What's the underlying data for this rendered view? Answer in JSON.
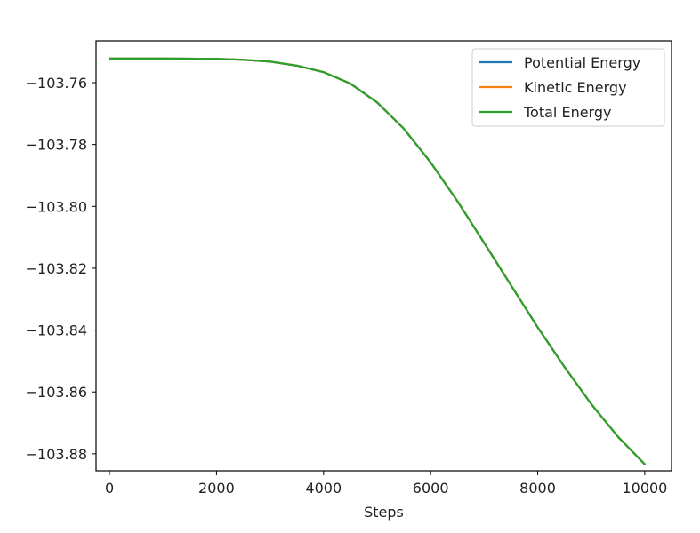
{
  "chart_data": {
    "type": "line",
    "title": "",
    "xlabel": "Steps",
    "ylabel": "",
    "xlim": [
      -250,
      10500
    ],
    "ylim": [
      -103.8855,
      -103.7465
    ],
    "xticks": [
      0,
      2000,
      4000,
      6000,
      8000,
      10000
    ],
    "xtick_labels": [
      "0",
      "2000",
      "4000",
      "6000",
      "8000",
      "10000"
    ],
    "yticks": [
      -103.76,
      -103.78,
      -103.8,
      -103.82,
      -103.84,
      -103.86,
      -103.88
    ],
    "ytick_labels": [
      "−103.76",
      "−103.78",
      "−103.80",
      "−103.82",
      "−103.84",
      "−103.86",
      "−103.88"
    ],
    "grid": false,
    "legend_position": "top-right",
    "x": [
      0,
      1000,
      2000,
      2500,
      3000,
      3500,
      4000,
      4500,
      5000,
      5500,
      6000,
      6500,
      7000,
      7500,
      8000,
      8500,
      9000,
      9500,
      10000
    ],
    "series": [
      {
        "name": "Potential Energy",
        "color": "#1f77b4",
        "values": [
          -103.7522,
          -103.7522,
          -103.7523,
          -103.7526,
          -103.7532,
          -103.7545,
          -103.7566,
          -103.7603,
          -103.7664,
          -103.7749,
          -103.7858,
          -103.7983,
          -103.8118,
          -103.8255,
          -103.8391,
          -103.8519,
          -103.8639,
          -103.8745,
          -103.8834
        ]
      },
      {
        "name": "Kinetic Energy",
        "color": "#ff7f0e",
        "values": [
          -103.7522,
          -103.7522,
          -103.7523,
          -103.7526,
          -103.7532,
          -103.7545,
          -103.7566,
          -103.7603,
          -103.7664,
          -103.7749,
          -103.7858,
          -103.7983,
          -103.8118,
          -103.8255,
          -103.8391,
          -103.8519,
          -103.8639,
          -103.8745,
          -103.8834
        ]
      },
      {
        "name": "Total Energy",
        "color": "#2ca02c",
        "values": [
          -103.7522,
          -103.7522,
          -103.7523,
          -103.7526,
          -103.7532,
          -103.7545,
          -103.7566,
          -103.7603,
          -103.7664,
          -103.7749,
          -103.7858,
          -103.7983,
          -103.8118,
          -103.8255,
          -103.8391,
          -103.8519,
          -103.8639,
          -103.8745,
          -103.8834
        ]
      }
    ]
  }
}
